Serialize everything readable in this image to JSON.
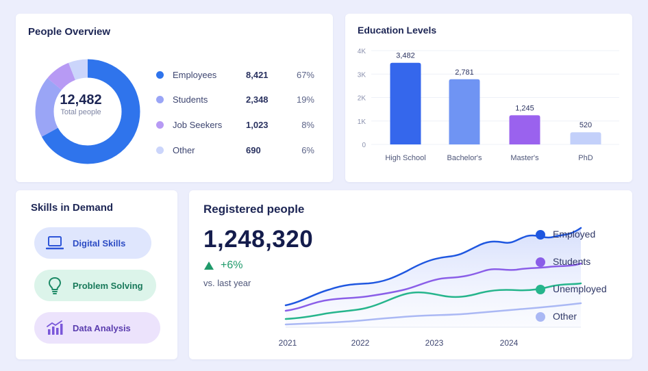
{
  "people_overview": {
    "title": "People Overview",
    "total": "12,482",
    "total_label": "Total people",
    "segments": [
      {
        "label": "Employees",
        "value": "8,421",
        "pct": "67%",
        "share": 67,
        "color": "#2f74ec"
      },
      {
        "label": "Students",
        "value": "2,348",
        "pct": "19%",
        "share": 19,
        "color": "#9aa5f6"
      },
      {
        "label": "Job Seekers",
        "value": "1,023",
        "pct": "8%",
        "share": 8,
        "color": "#b79af4"
      },
      {
        "label": "Other",
        "value": "690",
        "pct": "6%",
        "share": 6,
        "color": "#cbd5fb"
      }
    ]
  },
  "education": {
    "title": "Education Levels",
    "chart_data": {
      "type": "bar",
      "categories": [
        "High School",
        "Bachelor's",
        "Master's",
        "PhD"
      ],
      "values": [
        3482,
        2781,
        1245,
        520
      ],
      "value_labels": [
        "3,482",
        "2,781",
        "1,245",
        "520"
      ],
      "yticks": [
        "0",
        "1K",
        "2K",
        "3K",
        "4K"
      ],
      "ylim": [
        0,
        4000
      ],
      "colors": [
        "#3567ec",
        "#6f94f3",
        "#9a62ee",
        "#c3d0fa"
      ],
      "grid": true
    }
  },
  "skills": {
    "title": "Skills in Demand",
    "items": [
      {
        "label": "Digital Skills",
        "icon": "laptop-icon"
      },
      {
        "label": "Problem Solving",
        "icon": "lightbulb-icon"
      },
      {
        "label": "Data Analysis",
        "icon": "bar-chart-icon"
      }
    ]
  },
  "registered": {
    "title": "Registered people",
    "total": "1,248,320",
    "change": "+6%",
    "change_label": "vs. last year",
    "chart_data": {
      "type": "line",
      "x": [
        "2021",
        "2022",
        "2023",
        "2024"
      ],
      "legend_position": "right",
      "series": [
        {
          "name": "Employed",
          "color": "#1f57e0"
        },
        {
          "name": "Students",
          "color": "#8a5ee8"
        },
        {
          "name": "Unemployed",
          "color": "#26b58c"
        },
        {
          "name": "Other",
          "color": "#aab8f4"
        }
      ]
    }
  }
}
